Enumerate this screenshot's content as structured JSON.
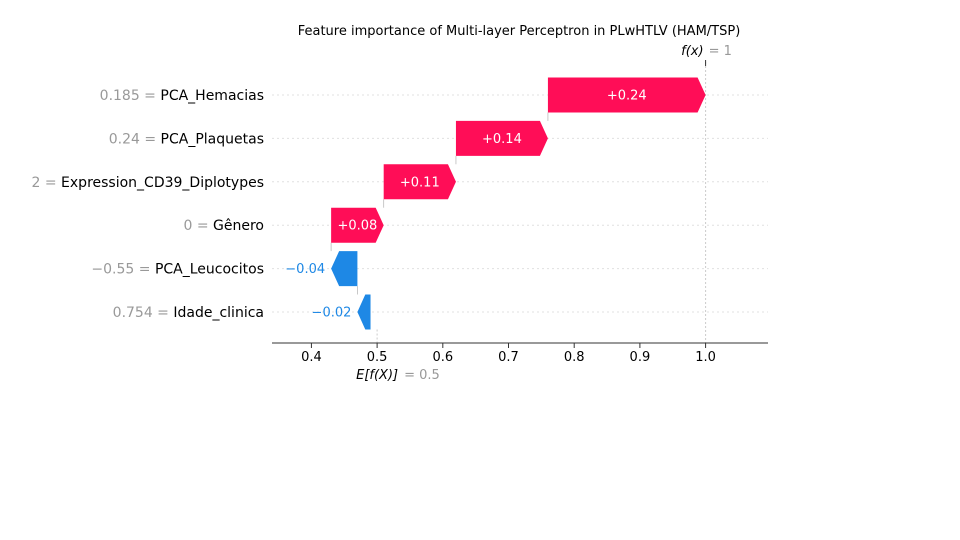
{
  "chart_data": {
    "type": "waterfall",
    "title": "Feature importance of Multi-layer Perceptron in PLwHTLV (HAM/TSP)",
    "xlim": [
      0.34,
      1.095
    ],
    "x_ticks": [
      "0.4",
      "0.5",
      "0.6",
      "0.7",
      "0.8",
      "0.9",
      "1.0"
    ],
    "x_tick_values": [
      0.4,
      0.5,
      0.6,
      0.7,
      0.8,
      0.9,
      1.0
    ],
    "base_value": 0.5,
    "base_label": {
      "func": "E[f(X)]",
      "value": "= 0.5"
    },
    "output_value": 1.0,
    "output_label": {
      "func": "f(x)",
      "value": "= 1"
    },
    "features": [
      {
        "value_text": "0.185",
        "name": "PCA_Hemacias",
        "contribution": 0.24,
        "label": "+0.24"
      },
      {
        "value_text": "0.24",
        "name": "PCA_Plaquetas",
        "contribution": 0.14,
        "label": "+0.14"
      },
      {
        "value_text": "2",
        "name": "Expression_CD39_Diplotypes",
        "contribution": 0.11,
        "label": "+0.11"
      },
      {
        "value_text": "0",
        "name": "Gênero",
        "contribution": 0.08,
        "label": "+0.08"
      },
      {
        "value_text": "−0.55",
        "name": "PCA_Leucocitos",
        "contribution": -0.04,
        "label": "−0.04"
      },
      {
        "value_text": "0.754",
        "name": "Idade_clinica",
        "contribution": -0.02,
        "label": "−0.02"
      }
    ],
    "colors": {
      "positive": "#ff0d57",
      "negative": "#1e88e5",
      "grid": "#e0e0e0",
      "muted": "#999999"
    },
    "grid": true
  }
}
